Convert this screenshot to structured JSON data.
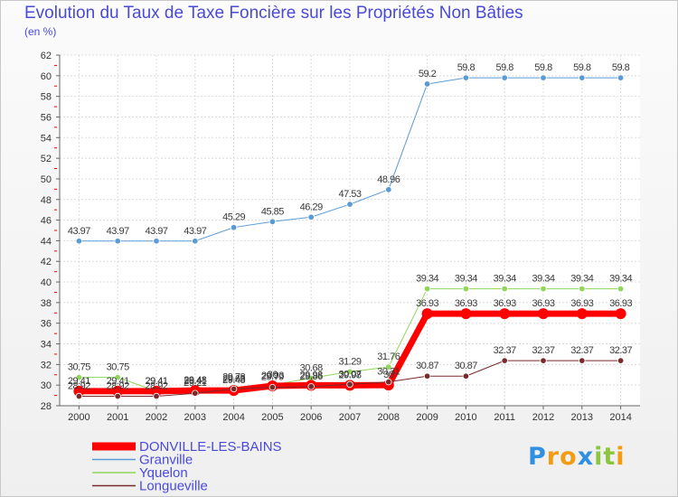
{
  "header": {
    "title": "Evolution du Taux de Taxe Foncière sur les Propriétés Non Bâties",
    "unit_label": "(en %)"
  },
  "brand": {
    "logo_text": "Proxiti",
    "letters": [
      "P",
      "r",
      "o",
      "x",
      "i",
      "t",
      "i"
    ],
    "letter_colors": [
      "#2f8fe0",
      "#f39c12",
      "#f39c12",
      "#2f8fe0",
      "#8cc63f",
      "#8cc63f",
      "#f39c12"
    ]
  },
  "chart_data": {
    "type": "line",
    "title": "Evolution du Taux de Taxe Foncière sur les Propriétés Non Bâties",
    "ylabel": "(en %)",
    "xlabel": "",
    "ylim": [
      28,
      62
    ],
    "yticks": [
      28,
      30,
      32,
      34,
      36,
      38,
      40,
      42,
      44,
      46,
      48,
      50,
      52,
      54,
      56,
      58,
      60,
      62
    ],
    "categories": [
      "2000",
      "2001",
      "2002",
      "2003",
      "2004",
      "2005",
      "2006",
      "2007",
      "2008",
      "2009",
      "2010",
      "2011",
      "2012",
      "2013",
      "2014"
    ],
    "grid": true,
    "legend_position": "bottom-left",
    "series": [
      {
        "name": "Granville",
        "color": "#5b9bd5",
        "width": 1,
        "values": [
          43.97,
          43.97,
          43.97,
          43.97,
          45.29,
          45.85,
          46.29,
          47.53,
          48.96,
          59.2,
          59.8,
          59.8,
          59.8,
          59.8,
          59.8
        ],
        "labels": [
          "43.97",
          "43.97",
          "43.97",
          "43.97",
          "45.29",
          "45.85",
          "46.29",
          "47.53",
          "48.96",
          "59.2",
          "59.8",
          "59.8",
          "59.8",
          "59.8",
          "59.8"
        ]
      },
      {
        "name": "Yquelon",
        "color": "#8fd65a",
        "width": 1,
        "values": [
          30.75,
          30.75,
          29.41,
          29.41,
          29.78,
          30,
          30.68,
          31.29,
          31.76,
          39.34,
          39.34,
          39.34,
          39.34,
          39.34,
          39.34
        ],
        "labels": [
          "30.75",
          "30.75",
          "29.41",
          "29.41",
          "29.78",
          "30",
          "30.68",
          "31.29",
          "31.76",
          "39.34",
          "39.34",
          "39.34",
          "39.34",
          "39.34",
          "39.34"
        ]
      },
      {
        "name": "DONVILLE-LES-BAINS",
        "color": "#ff0000",
        "width": 7,
        "values": [
          29.41,
          29.41,
          29.41,
          29.48,
          29.48,
          29.93,
          29.98,
          29.98,
          30,
          36.93,
          36.93,
          36.93,
          36.93,
          36.93,
          36.93
        ],
        "labels": [
          "29.41",
          "29.41",
          "29.41",
          "29.48",
          "29.48",
          "29.93",
          "29.98",
          "29.98",
          "30",
          "36.93",
          "36.93",
          "36.93",
          "36.93",
          "36.93",
          "36.93"
        ]
      },
      {
        "name": "Longueville",
        "color": "#7a2a2a",
        "width": 1,
        "values": [
          28.92,
          28.92,
          28.92,
          29.21,
          29.63,
          29.79,
          29.86,
          30.07,
          30.31,
          30.87,
          30.87,
          32.37,
          32.37,
          32.37,
          32.37
        ],
        "labels": [
          "28.92",
          "28.92",
          "28.92",
          "29.21",
          "29.63",
          "29.79",
          "29.86",
          "30.07",
          "30.31",
          "30.87",
          "30.87",
          "32.37",
          "32.37",
          "32.37",
          "32.37"
        ]
      }
    ],
    "legend": [
      {
        "name": "DONVILLE-LES-BAINS",
        "color": "#ff0000"
      },
      {
        "name": "Granville",
        "color": "#5b9bd5"
      },
      {
        "name": "Yquelon",
        "color": "#8fd65a"
      },
      {
        "name": "Longueville",
        "color": "#7a2a2a"
      }
    ]
  }
}
